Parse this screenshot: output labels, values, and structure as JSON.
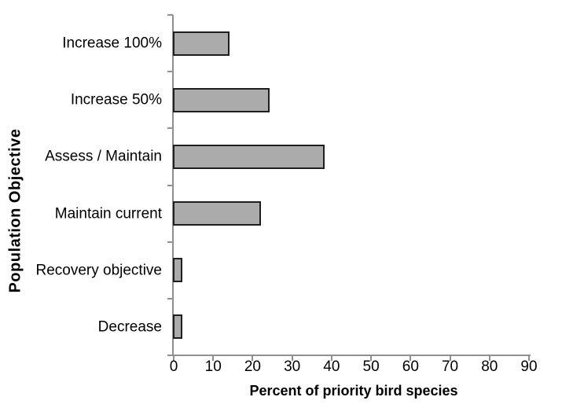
{
  "chart_data": {
    "type": "bar",
    "orientation": "horizontal",
    "categories": [
      "Increase 100%",
      "Increase 50%",
      "Assess / Maintain",
      "Maintain current",
      "Recovery objective",
      "Decrease"
    ],
    "values": [
      14,
      24,
      38,
      22,
      2,
      2
    ],
    "xlabel": "Percent of priority bird species",
    "ylabel": "Population Objective",
    "xlim": [
      0,
      90
    ],
    "x_ticks": [
      0,
      10,
      20,
      30,
      40,
      50,
      60,
      70,
      80,
      90
    ],
    "grid": false,
    "legend": false,
    "colors": {
      "bar_fill": "#ABABAB",
      "bar_border": "#1F1F1F",
      "axis": "#909090",
      "text": "#000000",
      "background": "#FFFFFF"
    }
  }
}
